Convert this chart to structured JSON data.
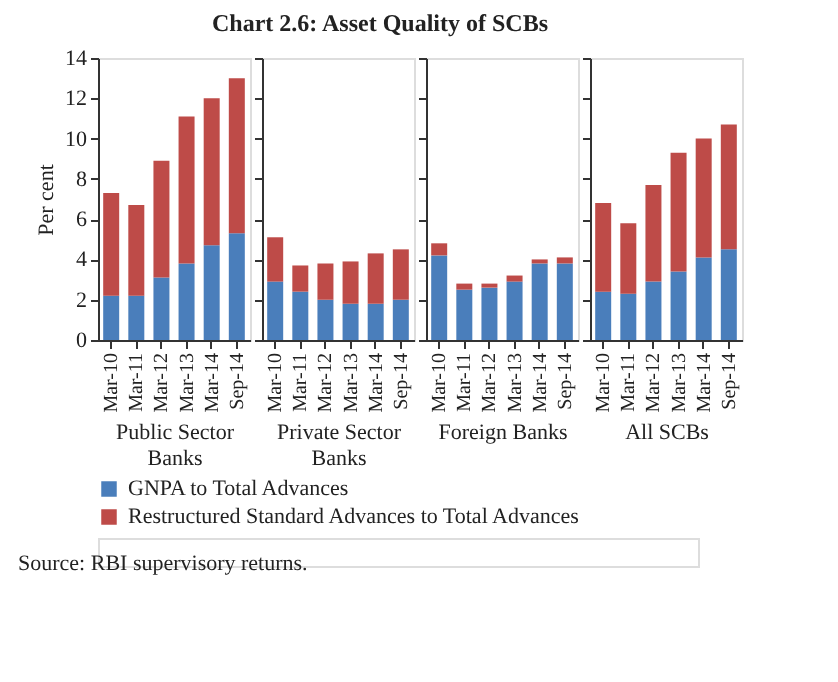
{
  "chart_data": [
    {
      "type": "other",
      "title": "Chart 2.6:  Asset Quality of SCBs",
      "annotations": [
        "Source: RBI supervisory returns."
      ]
    },
    {
      "type": "bar",
      "xlabel": "Public Sector Banks",
      "ylabel": "Per cent",
      "stacked": true,
      "legend": "bottom",
      "ylim": [
        0,
        14
      ],
      "yticks": [
        0,
        2,
        4,
        6,
        8,
        10,
        12,
        14
      ],
      "grid": false,
      "categories": [
        "Mar-10",
        "Mar-11",
        "Mar-12",
        "Mar-13",
        "Mar-14",
        "Sep-14"
      ],
      "series": [
        {
          "name": "GNPA to Total Advances",
          "color": "#4a7ebb",
          "values": [
            2.2,
            2.2,
            3.1,
            3.8,
            4.7,
            5.3
          ]
        },
        {
          "name": "Restructured Standard Advances to Total Advances",
          "color": "#be4b48",
          "values": [
            5.1,
            4.5,
            5.8,
            7.3,
            7.3,
            7.7
          ]
        }
      ]
    },
    {
      "type": "bar",
      "xlabel": "Private Sector Banks",
      "stacked": true,
      "ylim": [
        0,
        14
      ],
      "yticks": [
        0,
        2,
        4,
        6,
        8,
        10,
        12,
        14
      ],
      "tick_labels": "x",
      "grid": false,
      "categories": [
        "Mar-10",
        "Mar-11",
        "Mar-12",
        "Mar-13",
        "Mar-14",
        "Sep-14"
      ],
      "series": [
        {
          "name": "GNPA to Total Advances",
          "color": "#4a7ebb",
          "values": [
            2.9,
            2.4,
            2.0,
            1.8,
            1.8,
            2.0
          ]
        },
        {
          "name": "Restructured Standard Advances to Total Advances",
          "color": "#be4b48",
          "values": [
            2.2,
            1.3,
            1.8,
            2.1,
            2.5,
            2.5
          ]
        }
      ]
    },
    {
      "type": "bar",
      "xlabel": "Foreign Banks",
      "stacked": true,
      "ylim": [
        0,
        14
      ],
      "yticks": [
        0,
        2,
        4,
        6,
        8,
        10,
        12,
        14
      ],
      "tick_labels": "x",
      "grid": false,
      "categories": [
        "Mar-10",
        "Mar-11",
        "Mar-12",
        "Mar-13",
        "Mar-14",
        "Sep-14"
      ],
      "series": [
        {
          "name": "GNPA to Total Advances",
          "color": "#4a7ebb",
          "values": [
            4.2,
            2.5,
            2.6,
            2.9,
            3.8,
            3.8
          ]
        },
        {
          "name": "Restructured Standard Advances to Total Advances",
          "color": "#be4b48",
          "values": [
            0.6,
            0.3,
            0.2,
            0.3,
            0.2,
            0.3
          ]
        }
      ]
    },
    {
      "type": "bar",
      "xlabel": "All SCBs",
      "stacked": true,
      "ylim": [
        0,
        14
      ],
      "yticks": [
        0,
        2,
        4,
        6,
        8,
        10,
        12,
        14
      ],
      "tick_labels": "x",
      "grid": false,
      "categories": [
        "Mar-10",
        "Mar-11",
        "Mar-12",
        "Mar-13",
        "Mar-14",
        "Sep-14"
      ],
      "series": [
        {
          "name": "GNPA to Total Advances",
          "color": "#4a7ebb",
          "values": [
            2.4,
            2.3,
            2.9,
            3.4,
            4.1,
            4.5
          ]
        },
        {
          "name": "Restructured Standard Advances to Total Advances",
          "color": "#be4b48",
          "values": [
            4.4,
            3.5,
            4.8,
            5.9,
            5.9,
            6.2
          ]
        }
      ]
    }
  ]
}
